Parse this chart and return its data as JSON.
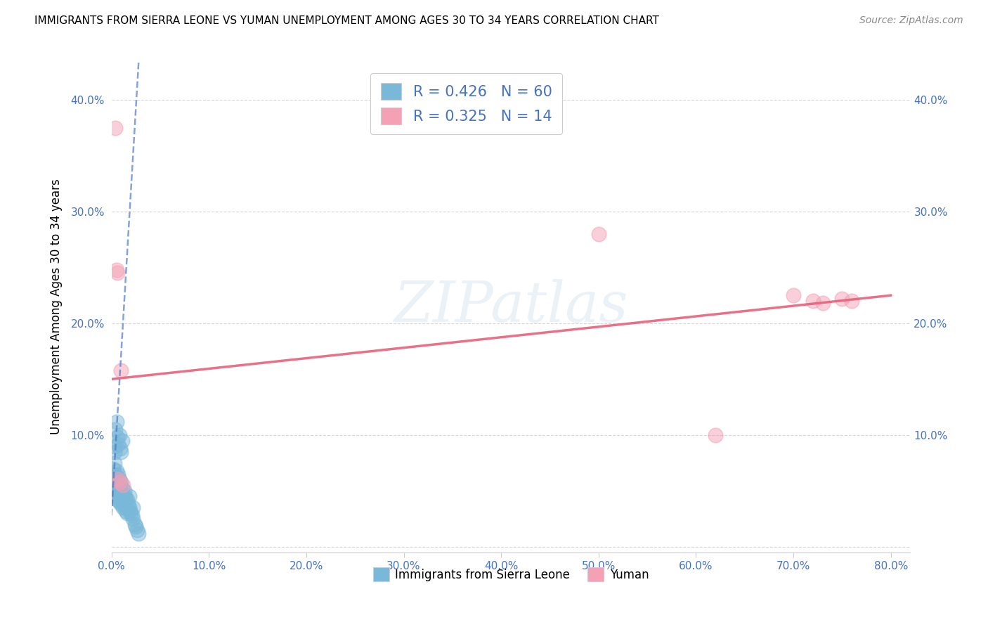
{
  "title": "IMMIGRANTS FROM SIERRA LEONE VS YUMAN UNEMPLOYMENT AMONG AGES 30 TO 34 YEARS CORRELATION CHART",
  "source": "Source: ZipAtlas.com",
  "tick_color": "#4472c4",
  "ylabel": "Unemployment Among Ages 30 to 34 years",
  "xlim": [
    0.0,
    0.82
  ],
  "ylim": [
    -0.005,
    0.435
  ],
  "xticks": [
    0.0,
    0.1,
    0.2,
    0.3,
    0.4,
    0.5,
    0.6,
    0.7,
    0.8
  ],
  "yticks": [
    0.0,
    0.1,
    0.2,
    0.3,
    0.4
  ],
  "ytick_labels": [
    "",
    "10.0%",
    "20.0%",
    "30.0%",
    "40.0%"
  ],
  "xtick_labels": [
    "0.0%",
    "10.0%",
    "20.0%",
    "30.0%",
    "40.0%",
    "50.0%",
    "60.0%",
    "70.0%",
    "80.0%"
  ],
  "legend_labels": [
    "Immigrants from Sierra Leone",
    "Yuman"
  ],
  "blue_color": "#7ab8d9",
  "pink_color": "#f4a0b5",
  "blue_line_color": "#4472c4",
  "pink_line_color": "#e8607a",
  "watermark": "ZIPatlas",
  "R_blue": 0.426,
  "N_blue": 60,
  "R_pink": 0.325,
  "N_pink": 14,
  "blue_scatter_x": [
    0.001,
    0.002,
    0.002,
    0.003,
    0.003,
    0.003,
    0.004,
    0.004,
    0.004,
    0.005,
    0.005,
    0.005,
    0.006,
    0.006,
    0.006,
    0.007,
    0.007,
    0.007,
    0.008,
    0.008,
    0.008,
    0.009,
    0.009,
    0.01,
    0.01,
    0.01,
    0.011,
    0.011,
    0.012,
    0.012,
    0.013,
    0.013,
    0.014,
    0.014,
    0.015,
    0.015,
    0.016,
    0.016,
    0.017,
    0.018,
    0.018,
    0.019,
    0.02,
    0.021,
    0.022,
    0.022,
    0.024,
    0.025,
    0.026,
    0.028,
    0.003,
    0.004,
    0.004,
    0.005,
    0.006,
    0.007,
    0.008,
    0.009,
    0.01,
    0.011
  ],
  "blue_scatter_y": [
    0.055,
    0.06,
    0.07,
    0.05,
    0.06,
    0.075,
    0.045,
    0.055,
    0.065,
    0.048,
    0.058,
    0.068,
    0.042,
    0.052,
    0.062,
    0.045,
    0.055,
    0.065,
    0.04,
    0.05,
    0.06,
    0.042,
    0.055,
    0.038,
    0.048,
    0.058,
    0.04,
    0.052,
    0.035,
    0.048,
    0.038,
    0.05,
    0.035,
    0.045,
    0.032,
    0.042,
    0.03,
    0.042,
    0.038,
    0.035,
    0.045,
    0.032,
    0.03,
    0.028,
    0.025,
    0.035,
    0.02,
    0.018,
    0.015,
    0.012,
    0.085,
    0.09,
    0.105,
    0.112,
    0.098,
    0.092,
    0.1,
    0.088,
    0.085,
    0.095
  ],
  "pink_scatter_x": [
    0.004,
    0.005,
    0.006,
    0.007,
    0.008,
    0.01,
    0.012,
    0.5,
    0.62,
    0.7,
    0.72,
    0.73,
    0.75,
    0.76
  ],
  "pink_scatter_y": [
    0.375,
    0.248,
    0.245,
    0.06,
    0.058,
    0.158,
    0.055,
    0.28,
    0.1,
    0.225,
    0.22,
    0.218,
    0.222,
    0.22
  ],
  "blue_line_x0": 0.0,
  "blue_line_y0": 0.028,
  "blue_line_x1": 0.028,
  "blue_line_y1": 0.435,
  "pink_line_x0": 0.0,
  "pink_line_y0": 0.15,
  "pink_line_x1": 0.8,
  "pink_line_y1": 0.225
}
